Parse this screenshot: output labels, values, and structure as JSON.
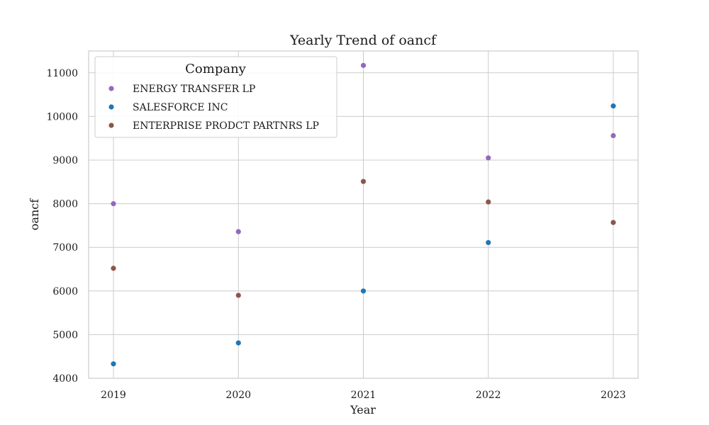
{
  "chart_data": {
    "type": "scatter",
    "title": "Yearly Trend of oancf",
    "xlabel": "Year",
    "ylabel": "oancf",
    "x": [
      2019,
      2020,
      2021,
      2022,
      2023
    ],
    "x_tick_labels": [
      "2019",
      "2020",
      "2021",
      "2022",
      "2023"
    ],
    "ylim": [
      4000,
      11500
    ],
    "y_ticks": [
      4000,
      5000,
      6000,
      7000,
      8000,
      9000,
      10000,
      11000
    ],
    "y_tick_labels": [
      "4000",
      "5000",
      "6000",
      "7000",
      "8000",
      "9000",
      "10000",
      "11000"
    ],
    "grid": true,
    "legend": {
      "title": "Company",
      "placement": "top-left"
    },
    "series": [
      {
        "name": "ENERGY TRANSFER LP",
        "color": "#9467bd",
        "values": [
          8000,
          7360,
          11170,
          9050,
          9560
        ]
      },
      {
        "name": "SALESFORCE INC",
        "color": "#1f77b4",
        "values": [
          4330,
          4810,
          6000,
          7110,
          10240
        ]
      },
      {
        "name": "ENTERPRISE PRODCT PARTNRS LP",
        "color": "#8c564b",
        "values": [
          6520,
          5900,
          8510,
          8040,
          7570
        ]
      }
    ]
  }
}
